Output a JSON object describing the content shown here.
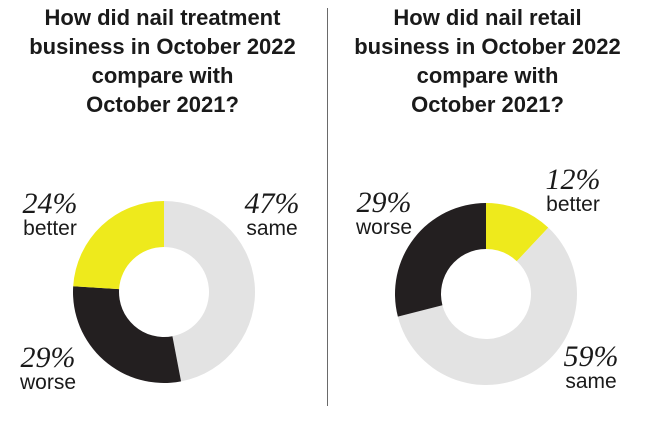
{
  "chart_data": [
    {
      "type": "pie",
      "title": [
        "How did nail treatment",
        "business in October 2022",
        "compare with",
        "October 2021?"
      ],
      "slices": [
        {
          "label": "same",
          "pct": "47%",
          "value": 47,
          "color": "#e3e3e3"
        },
        {
          "label": "worse",
          "pct": "29%",
          "value": 29,
          "color": "#231f20"
        },
        {
          "label": "better",
          "pct": "24%",
          "value": 24,
          "color": "#eeea1c"
        }
      ]
    },
    {
      "type": "pie",
      "title": [
        "How did nail retail",
        "business in October 2022",
        "compare with",
        "October 2021?"
      ],
      "slices": [
        {
          "label": "better",
          "pct": "12%",
          "value": 12,
          "color": "#eeea1c"
        },
        {
          "label": "same",
          "pct": "59%",
          "value": 59,
          "color": "#e3e3e3"
        },
        {
          "label": "worse",
          "pct": "29%",
          "value": 29,
          "color": "#231f20"
        }
      ]
    }
  ]
}
